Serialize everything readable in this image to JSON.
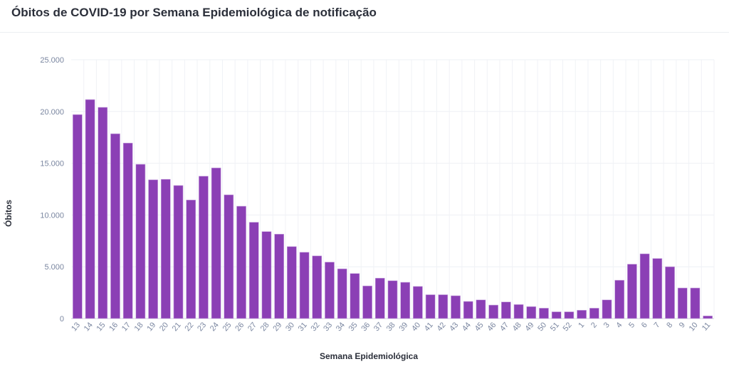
{
  "chart_data": {
    "type": "bar",
    "title": "Óbitos de COVID-19 por Semana Epidemiológica de notificação",
    "xlabel": "Semana Epidemiológica",
    "ylabel": "Óbitos",
    "ylim": [
      0,
      25000
    ],
    "yticks": [
      0,
      5000,
      10000,
      15000,
      20000,
      25000
    ],
    "ytick_labels": [
      "0",
      "5.000",
      "10.000",
      "15.000",
      "20.000",
      "25.000"
    ],
    "grid": true,
    "bar_color": "#8b3fb5",
    "categories": [
      "13",
      "14",
      "15",
      "16",
      "17",
      "18",
      "19",
      "20",
      "21",
      "22",
      "23",
      "24",
      "25",
      "26",
      "27",
      "28",
      "29",
      "30",
      "31",
      "32",
      "33",
      "34",
      "35",
      "36",
      "37",
      "38",
      "39",
      "40",
      "41",
      "42",
      "43",
      "44",
      "45",
      "46",
      "47",
      "48",
      "49",
      "50",
      "51",
      "52",
      "1",
      "2",
      "3",
      "4",
      "5",
      "6",
      "7",
      "8",
      "9",
      "10",
      "11"
    ],
    "values": [
      19700,
      21150,
      20400,
      17850,
      16950,
      14900,
      13400,
      13450,
      12850,
      11450,
      13750,
      14550,
      11950,
      10850,
      9300,
      8400,
      8150,
      6950,
      6400,
      6050,
      5450,
      4800,
      4350,
      3150,
      3900,
      3650,
      3500,
      3100,
      2300,
      2300,
      2200,
      1650,
      1800,
      1300,
      1600,
      1350,
      1150,
      1000,
      650,
      650,
      800,
      1000,
      1800,
      3700,
      5250,
      6250,
      5800,
      5000,
      2950,
      2950,
      250
    ]
  }
}
